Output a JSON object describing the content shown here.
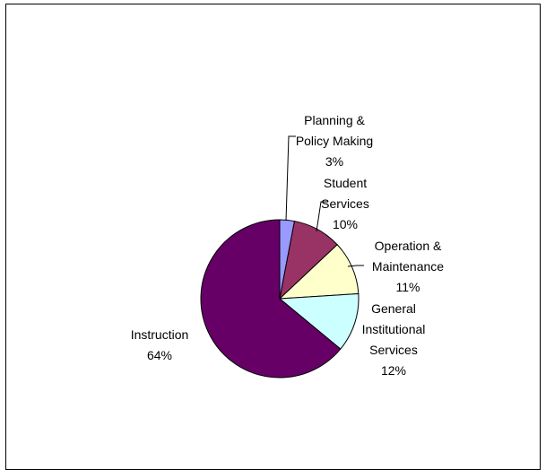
{
  "chart_data": {
    "type": "pie",
    "title": "",
    "start_angle_deg": 0,
    "direction": "clockwise",
    "slices": [
      {
        "label_lines": [
          "Planning &",
          "Policy Making"
        ],
        "value": 3,
        "percent_label": "3%",
        "color": "#9999FF"
      },
      {
        "label_lines": [
          "Student",
          "Services"
        ],
        "value": 10,
        "percent_label": "10%",
        "color": "#993366"
      },
      {
        "label_lines": [
          "Operation &",
          "Maintenance"
        ],
        "value": 11,
        "percent_label": "11%",
        "color": "#FFFFCC"
      },
      {
        "label_lines": [
          "General",
          "Institutional",
          "Services"
        ],
        "value": 12,
        "percent_label": "12%",
        "color": "#CCFFFF"
      },
      {
        "label_lines": [
          "Instruction"
        ],
        "value": 64,
        "percent_label": "64%",
        "color": "#660066"
      }
    ]
  }
}
